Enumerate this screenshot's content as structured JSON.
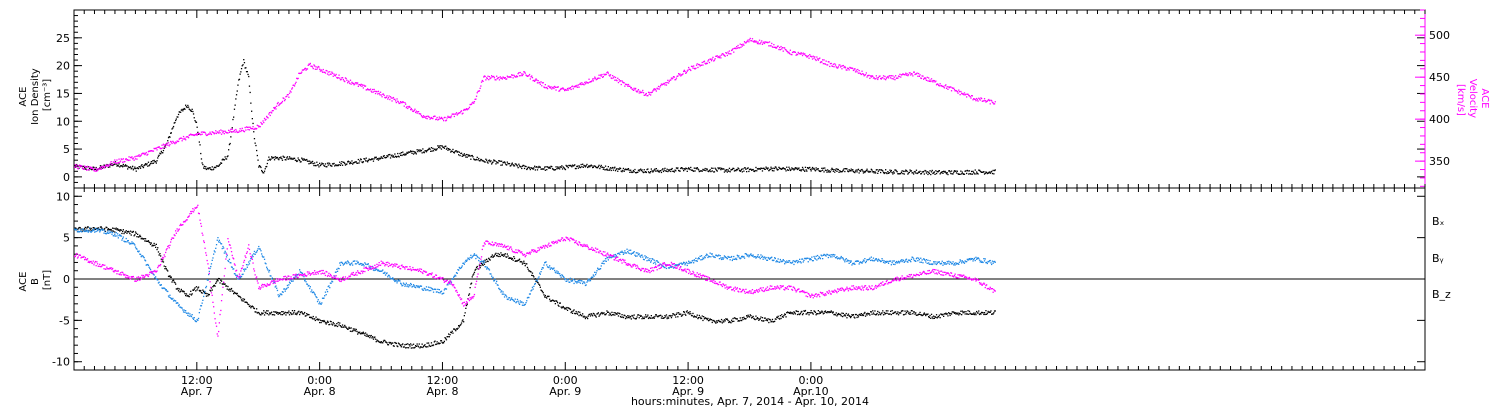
{
  "chart_data": [
    {
      "type": "scatter",
      "panel": "top",
      "ylabel_lines": [
        "ACE",
        "Ion Density",
        "[cm⁻³]"
      ],
      "ylabel2_lines": [
        "ACE",
        "Velocity",
        "[km/s]"
      ],
      "ylim": [
        -2,
        30
      ],
      "yticks": [
        0,
        5,
        10,
        15,
        20,
        25
      ],
      "ylim2": [
        318,
        530
      ],
      "yticks2": [
        350,
        400,
        450,
        500
      ],
      "series": [
        {
          "key": "density",
          "color": "#000000",
          "axis": "left",
          "x": [
            0,
            2,
            4,
            6,
            8,
            9,
            10,
            11,
            11.5,
            12,
            12.5,
            13,
            14,
            15,
            16,
            16.5,
            17,
            17.5,
            18,
            18.5,
            19,
            20,
            22,
            24,
            26,
            28,
            30,
            32,
            34,
            36,
            38,
            40,
            42,
            44,
            46,
            48,
            50,
            52,
            54,
            56,
            58,
            60,
            62,
            64,
            66,
            68,
            70,
            72,
            74,
            76,
            78,
            80,
            82,
            84,
            86,
            88,
            90
          ],
          "y": [
            2,
            1.5,
            2.5,
            1.5,
            3,
            6,
            11,
            13,
            12,
            9,
            2,
            1.5,
            2,
            4,
            17,
            21,
            18,
            8,
            2,
            1,
            3.5,
            3.5,
            3.2,
            2.2,
            2.5,
            3,
            3.5,
            4.2,
            4.8,
            5.5,
            4,
            3,
            2.5,
            1.8,
            1.6,
            1.8,
            2.2,
            1.7,
            1.3,
            1.2,
            1.3,
            1.5,
            1.4,
            1.3,
            1.4,
            1.6,
            1.5,
            1.5,
            1.3,
            1.2,
            1.1,
            1.0,
            1.0,
            0.9,
            0.9,
            1.0,
            1.0
          ]
        },
        {
          "key": "velocity",
          "color": "#ff00ff",
          "axis": "right",
          "x": [
            0,
            2,
            4,
            6,
            8,
            10,
            12,
            14,
            16,
            18,
            20,
            21,
            22,
            23,
            24,
            26,
            28,
            30,
            32,
            34,
            36,
            38,
            39,
            40,
            42,
            44,
            46,
            48,
            50,
            52,
            54,
            56,
            58,
            60,
            62,
            64,
            66,
            68,
            70,
            72,
            74,
            76,
            78,
            80,
            82,
            84,
            86,
            88,
            90
          ],
          "y": [
            345,
            340,
            350,
            355,
            365,
            375,
            383,
            385,
            387,
            392,
            420,
            430,
            455,
            465,
            460,
            450,
            440,
            430,
            420,
            405,
            400,
            410,
            420,
            450,
            450,
            455,
            440,
            435,
            445,
            455,
            440,
            430,
            445,
            460,
            470,
            480,
            495,
            490,
            480,
            475,
            465,
            460,
            450,
            450,
            455,
            445,
            435,
            425,
            420
          ]
        }
      ]
    },
    {
      "type": "scatter",
      "panel": "bottom",
      "ylabel_lines": [
        "ACE",
        "B",
        "[nT]"
      ],
      "ylim": [
        -11,
        11
      ],
      "yticks": [
        -10,
        -5,
        0,
        5,
        10
      ],
      "legend": [
        "Bₓ",
        "Bᵧ",
        "B_z"
      ],
      "legend_position": "right",
      "series": [
        {
          "key": "bx",
          "name": "Bₓ",
          "color": "#000000",
          "x": [
            0,
            2,
            4,
            6,
            8,
            9,
            10,
            11,
            12,
            13,
            14,
            15,
            16,
            17,
            18,
            19,
            20,
            22,
            24,
            26,
            28,
            30,
            32,
            34,
            36,
            38,
            39,
            40,
            41,
            42,
            44,
            46,
            48,
            50,
            52,
            54,
            56,
            58,
            60,
            62,
            64,
            66,
            68,
            70,
            72,
            74,
            76,
            78,
            80,
            82,
            84,
            86,
            88,
            90
          ],
          "y": [
            6,
            6.2,
            6,
            5.5,
            4,
            1,
            -1,
            -2,
            -1,
            -2,
            0,
            -1,
            -2,
            -3,
            -4,
            -4,
            -4,
            -4,
            -5,
            -5.5,
            -6.5,
            -7.5,
            -8,
            -8,
            -7.5,
            -5,
            1,
            2,
            3,
            3,
            2,
            -2,
            -3.5,
            -4.5,
            -4,
            -4.5,
            -4.5,
            -4.5,
            -4,
            -5,
            -5,
            -4.5,
            -5,
            -4,
            -4,
            -4,
            -4.5,
            -4,
            -4,
            -4,
            -4.5,
            -4,
            -4,
            -4
          ]
        },
        {
          "key": "by",
          "name": "Bᵧ",
          "color": "#1e88e5",
          "x": [
            0,
            2,
            4,
            6,
            8,
            10,
            12,
            14,
            16,
            18,
            20,
            22,
            24,
            26,
            28,
            30,
            32,
            34,
            36,
            38,
            39,
            40,
            42,
            44,
            46,
            48,
            50,
            52,
            54,
            56,
            58,
            60,
            62,
            64,
            66,
            68,
            70,
            72,
            74,
            76,
            78,
            80,
            82,
            84,
            86,
            88,
            90
          ],
          "y": [
            6,
            6,
            5.5,
            4,
            0,
            -3,
            -5,
            5,
            0,
            4,
            -2,
            1,
            -3,
            2,
            2,
            1,
            -0.5,
            -1,
            -1.5,
            2,
            3,
            2,
            -2,
            -3,
            2,
            0,
            -0.5,
            2.5,
            3.5,
            2.5,
            1.5,
            2,
            3,
            2.5,
            3,
            2.5,
            2,
            2.5,
            3,
            2,
            2.5,
            2,
            2.5,
            2,
            2,
            2.5,
            2
          ]
        },
        {
          "key": "bz",
          "name": "B_z",
          "color": "#ff00ff",
          "x": [
            0,
            2,
            4,
            6,
            8,
            10,
            12,
            13,
            14,
            15,
            16,
            17,
            18,
            20,
            22,
            24,
            26,
            28,
            30,
            32,
            34,
            36,
            37,
            38,
            39,
            40,
            42,
            44,
            46,
            48,
            50,
            52,
            54,
            56,
            58,
            60,
            62,
            64,
            66,
            68,
            70,
            72,
            74,
            76,
            78,
            80,
            82,
            84,
            86,
            88,
            90
          ],
          "y": [
            3,
            2,
            1,
            0,
            1,
            6,
            9,
            2,
            -7,
            5,
            0,
            4,
            -1,
            0,
            0.5,
            1,
            0,
            1,
            2,
            1.5,
            1,
            0,
            -0.5,
            -3,
            -2,
            4.5,
            4,
            3,
            4,
            5,
            4,
            3,
            2,
            1,
            2,
            1,
            0,
            -1,
            -1.5,
            -1,
            -1,
            -2,
            -1.5,
            -1,
            -1,
            0,
            0.5,
            1,
            0.5,
            0,
            -1.5
          ]
        }
      ]
    }
  ],
  "x_axis": {
    "domain_hours": [
      0,
      132
    ],
    "ticks": [
      {
        "at": 12,
        "time": "12:00",
        "date": "Apr. 7"
      },
      {
        "at": 24,
        "time": "0:00",
        "date": "Apr. 8"
      },
      {
        "at": 36,
        "time": "12:00",
        "date": "Apr. 8"
      },
      {
        "at": 48,
        "time": "0:00",
        "date": "Apr. 9"
      },
      {
        "at": 60,
        "time": "12:00",
        "date": "Apr. 9"
      },
      {
        "at": 72,
        "time": "0:00",
        "date": "Apr.10"
      }
    ],
    "minor_step": 1,
    "label": "hours:minutes, Apr.  7, 2014 - Apr. 10, 2014"
  }
}
